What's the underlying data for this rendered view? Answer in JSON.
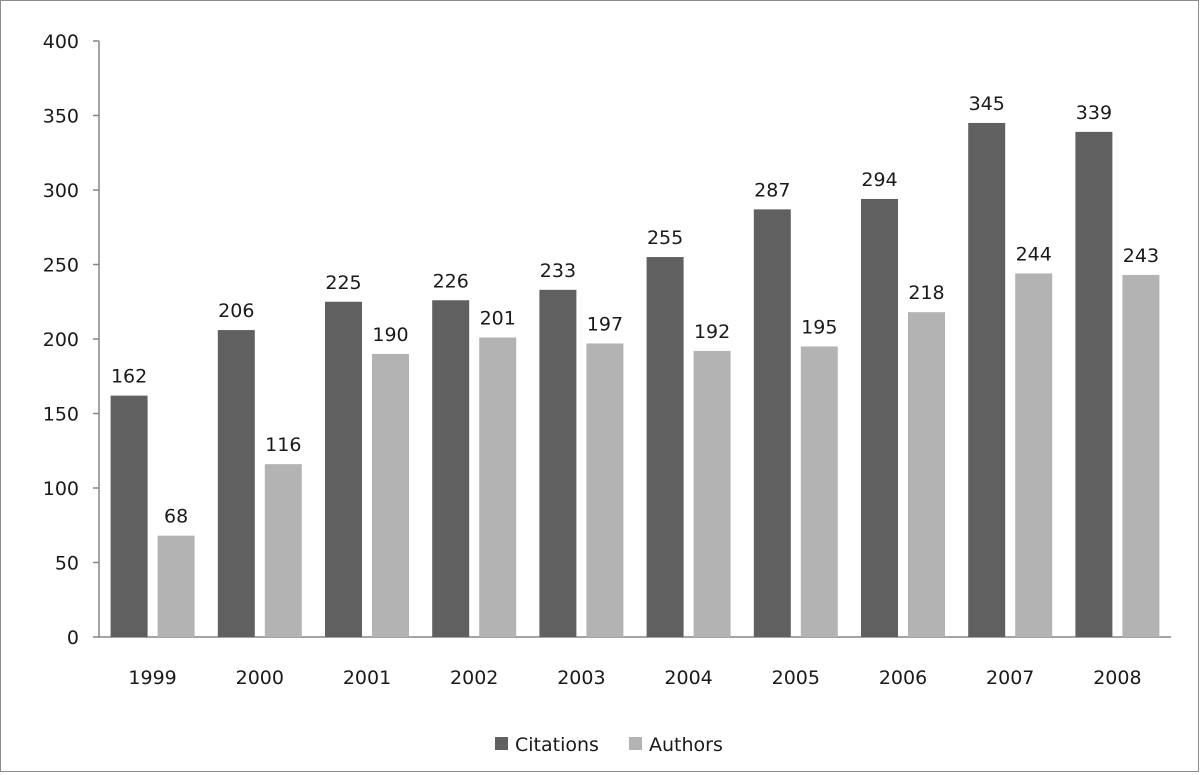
{
  "chart_data": {
    "type": "bar",
    "title": "",
    "xlabel": "",
    "ylabel": "",
    "categories": [
      "1999",
      "2000",
      "2001",
      "2002",
      "2003",
      "2004",
      "2005",
      "2006",
      "2007",
      "2008"
    ],
    "series": [
      {
        "name": "Citations",
        "color": "#606060",
        "values": [
          162,
          206,
          225,
          226,
          233,
          255,
          287,
          294,
          345,
          339
        ]
      },
      {
        "name": "Authors",
        "color": "#b3b3b3",
        "values": [
          68,
          116,
          190,
          201,
          197,
          192,
          195,
          218,
          244,
          243
        ]
      }
    ],
    "ylim": [
      0,
      400
    ],
    "yticks": [
      "0",
      "50",
      "100",
      "150",
      "200",
      "250",
      "300",
      "350",
      "400"
    ],
    "grid": false,
    "data_labels": true,
    "legend_position": "bottom"
  }
}
